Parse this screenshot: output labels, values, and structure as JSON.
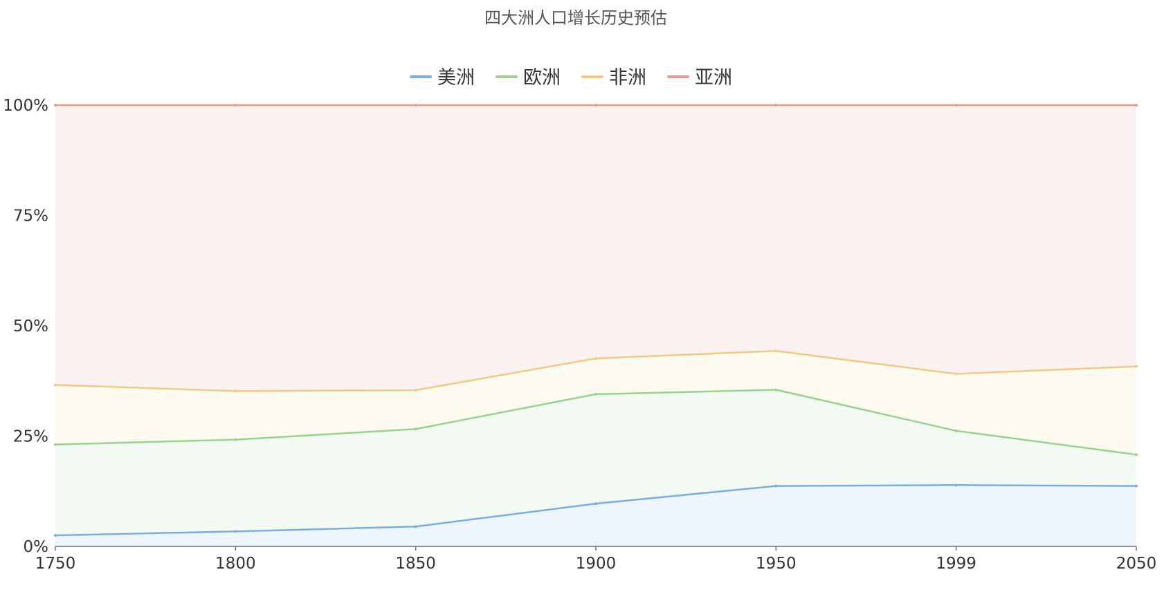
{
  "chart_data": {
    "type": "area",
    "stacked_percent": true,
    "title": "四大洲人口增长历史预估",
    "categories": [
      "1750",
      "1800",
      "1850",
      "1900",
      "1950",
      "1999",
      "2050"
    ],
    "ylim": [
      0,
      100
    ],
    "y_ticks": [
      "0%",
      "25%",
      "50%",
      "75%",
      "100%"
    ],
    "y_tick_values": [
      0,
      25,
      50,
      75,
      100
    ],
    "grid": true,
    "legend_position": "top-center",
    "series": [
      {
        "name": "美洲",
        "color": "#7cacdf",
        "fill": "#eef5fd",
        "values": [
          2.5,
          3.4,
          4.5,
          9.7,
          13.7,
          13.9,
          13.7
        ]
      },
      {
        "name": "欧洲",
        "color": "#99d18f",
        "fill": "#f3f9f3",
        "values": [
          20.6,
          20.8,
          22.1,
          24.8,
          21.8,
          12.3,
          7.1
        ]
      },
      {
        "name": "非洲",
        "color": "#f0c987",
        "fill": "#fdfbf0",
        "values": [
          13.5,
          11.0,
          8.8,
          8.1,
          8.8,
          12.9,
          20.0
        ]
      },
      {
        "name": "亚洲",
        "color": "#e59a8a",
        "fill": "#faf2f1",
        "values": [
          63.4,
          64.8,
          64.6,
          57.4,
          55.7,
          60.9,
          59.2
        ]
      }
    ]
  }
}
